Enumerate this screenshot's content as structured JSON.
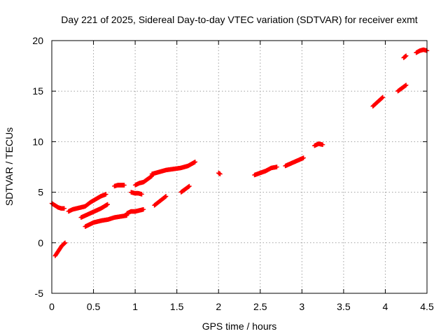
{
  "chart_data": {
    "type": "scatter",
    "title": "Day 221 of 2025, Sidereal Day-to-day VTEC variation (SDTVAR) for receiver exmt",
    "xlabel": "GPS time / hours",
    "ylabel": "SDTVAR / TECUs",
    "xlim": [
      0,
      4.5
    ],
    "ylim": [
      -5,
      20
    ],
    "xticks": [
      "0",
      "0.5",
      "1",
      "1.5",
      "2",
      "2.5",
      "3",
      "3.5",
      "4",
      "4.5"
    ],
    "yticks": [
      "-5",
      "0",
      "5",
      "10",
      "15",
      "20"
    ],
    "grid": true,
    "marker": "+",
    "series_color": "#ff0000",
    "segments": [
      {
        "x0": 0.0,
        "x1": 0.15,
        "y": [
          3.9,
          3.7,
          3.5,
          3.4,
          3.4
        ]
      },
      {
        "x0": 0.04,
        "x1": 0.16,
        "y": [
          -1.3,
          -0.8,
          -0.3,
          0.0
        ]
      },
      {
        "x0": 0.2,
        "x1": 0.4,
        "y": [
          3.1,
          3.3,
          3.4,
          3.5,
          3.6
        ]
      },
      {
        "x0": 0.4,
        "x1": 0.65,
        "y": [
          3.6,
          4.0,
          4.3,
          4.6,
          4.8
        ]
      },
      {
        "x0": 0.35,
        "x1": 0.67,
        "y": [
          2.5,
          2.8,
          3.1,
          3.4,
          3.8
        ]
      },
      {
        "x0": 0.4,
        "x1": 0.6,
        "y": [
          1.6,
          1.8,
          2.0,
          2.1,
          2.2
        ]
      },
      {
        "x0": 0.6,
        "x1": 0.9,
        "y": [
          2.2,
          2.3,
          2.5,
          2.6,
          2.7
        ]
      },
      {
        "x0": 0.9,
        "x1": 1.1,
        "y": [
          2.9,
          3.1,
          3.1,
          3.2,
          3.3
        ]
      },
      {
        "x0": 0.75,
        "x1": 0.87,
        "y": [
          5.6,
          5.7,
          5.7,
          5.7
        ]
      },
      {
        "x0": 0.95,
        "x1": 1.08,
        "y": [
          5.0,
          4.9,
          4.9,
          4.8
        ]
      },
      {
        "x0": 1.0,
        "x1": 1.2,
        "y": [
          5.7,
          5.9,
          6.0,
          6.3,
          6.6
        ]
      },
      {
        "x0": 1.2,
        "x1": 1.72,
        "y": [
          6.8,
          7.0,
          7.2,
          7.3,
          7.4,
          7.6,
          8.0
        ]
      },
      {
        "x0": 1.23,
        "x1": 1.37,
        "y": [
          3.7,
          4.0,
          4.3,
          4.6
        ]
      },
      {
        "x0": 1.55,
        "x1": 1.65,
        "y": [
          5.0,
          5.3,
          5.6
        ]
      },
      {
        "x0": 2.0,
        "x1": 2.02,
        "y": [
          6.9,
          6.8
        ]
      },
      {
        "x0": 2.43,
        "x1": 2.7,
        "y": [
          6.7,
          6.9,
          7.1,
          7.4,
          7.5
        ]
      },
      {
        "x0": 2.8,
        "x1": 3.02,
        "y": [
          7.6,
          7.8,
          8.0,
          8.2,
          8.4
        ]
      },
      {
        "x0": 3.15,
        "x1": 3.25,
        "y": [
          9.6,
          9.8,
          9.7
        ]
      },
      {
        "x0": 3.85,
        "x1": 3.97,
        "y": [
          13.5,
          13.8,
          14.1,
          14.4
        ]
      },
      {
        "x0": 4.15,
        "x1": 4.25,
        "y": [
          15.0,
          15.3,
          15.6
        ]
      },
      {
        "x0": 4.22,
        "x1": 4.25,
        "y": [
          18.3,
          18.5
        ]
      },
      {
        "x0": 4.37,
        "x1": 4.5,
        "y": [
          18.8,
          19.0,
          19.1,
          19.0
        ]
      }
    ]
  }
}
